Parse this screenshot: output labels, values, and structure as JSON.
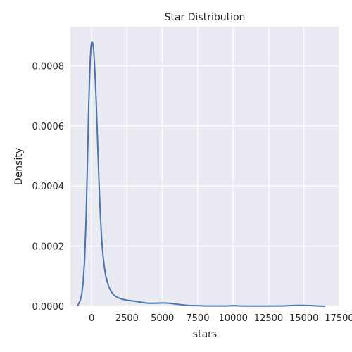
{
  "chart_data": {
    "type": "line",
    "title": "Star Distribution",
    "xlabel": "stars",
    "ylabel": "Density",
    "xlim": [
      -1500,
      17500
    ],
    "ylim": [
      0,
      0.00093
    ],
    "xticks": [
      0,
      2500,
      5000,
      7500,
      10000,
      12500,
      15000,
      17500
    ],
    "yticks": [
      0.0,
      0.0002,
      0.0004,
      0.0006,
      0.0008
    ],
    "ytick_labels": [
      "0.0000",
      "0.0002",
      "0.0004",
      "0.0006",
      "0.0008"
    ],
    "grid": true,
    "background": "#eaeaf2",
    "grid_color": "#ffffff",
    "line_color": "#4c72b0",
    "series": [
      {
        "x": [
          -1000,
          -900,
          -800,
          -700,
          -600,
          -500,
          -400,
          -300,
          -200,
          -100,
          -50,
          0,
          50,
          100,
          150,
          200,
          300,
          400,
          500,
          600,
          700,
          800,
          900,
          1000,
          1200,
          1400,
          1600,
          1800,
          2000,
          2200,
          2500,
          3000,
          3500,
          4000,
          4500,
          5000,
          5500,
          6000,
          6500,
          7000,
          7500,
          8000,
          8500,
          9000,
          9500,
          10000,
          10500,
          11000,
          11500,
          12000,
          12500,
          13000,
          13500,
          14000,
          14500,
          15000,
          15500,
          16000,
          16500
        ],
        "y": [
          0.0,
          1e-05,
          2e-05,
          4e-05,
          8e-05,
          0.00015,
          0.00028,
          0.00047,
          0.00068,
          0.00082,
          0.00086,
          0.00088,
          0.00088,
          0.00087,
          0.00085,
          0.00081,
          0.00071,
          0.00058,
          0.00044,
          0.00032,
          0.00023,
          0.00017,
          0.00013,
          0.0001,
          6.6e-05,
          4.7e-05,
          3.6e-05,
          3e-05,
          2.6e-05,
          2.3e-05,
          2e-05,
          1.7e-05,
          1.3e-05,
          1e-05,
          1e-05,
          1.1e-05,
          1e-05,
          7e-06,
          4e-06,
          2e-06,
          2e-06,
          1e-06,
          1e-06,
          1e-06,
          1e-06,
          2e-06,
          1e-06,
          5e-07,
          5e-07,
          5e-07,
          5e-07,
          1e-06,
          1e-06,
          2e-06,
          3e-06,
          3e-06,
          2e-06,
          1e-06,
          0.0
        ]
      }
    ]
  }
}
